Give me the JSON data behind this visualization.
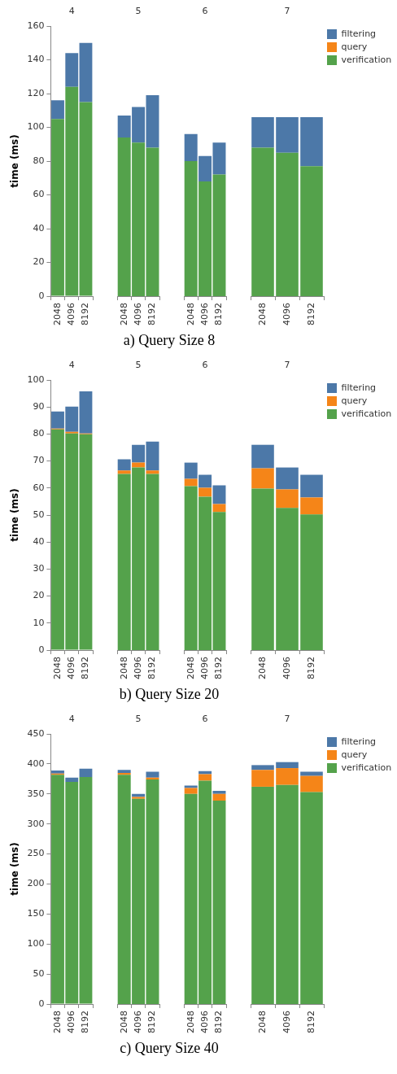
{
  "chart_data": [
    {
      "type": "bar",
      "title": "4",
      "ylabel": "time (ms)",
      "annotations": [
        "a) Query Size 8"
      ],
      "categories": [
        "2048",
        "4096",
        "8192"
      ],
      "stacked": true,
      "ylim": [
        0,
        160
      ],
      "yticks": [
        0,
        20,
        40,
        60,
        80,
        100,
        120,
        140,
        160
      ],
      "series": [
        {
          "color": "#54a24b",
          "values": [
            105,
            124,
            115
          ]
        },
        {
          "color": "#f58518",
          "values": [
            0,
            0,
            0
          ]
        },
        {
          "color": "#4c78a8",
          "values": [
            11,
            20,
            35
          ]
        }
      ]
    },
    {
      "type": "bar",
      "title": "5",
      "categories": [
        "2048",
        "4096",
        "8192"
      ],
      "stacked": true,
      "ylim": [
        0,
        160
      ],
      "tick_labels": "x",
      "series": [
        {
          "color": "#54a24b",
          "values": [
            94,
            91,
            88
          ]
        },
        {
          "color": "#f58518",
          "values": [
            0,
            0,
            0
          ]
        },
        {
          "color": "#4c78a8",
          "values": [
            13,
            21,
            31
          ]
        }
      ]
    },
    {
      "type": "bar",
      "title": "6",
      "categories": [
        "2048",
        "4096",
        "8192"
      ],
      "stacked": true,
      "ylim": [
        0,
        160
      ],
      "tick_labels": "x",
      "series": [
        {
          "color": "#54a24b",
          "values": [
            80,
            68,
            72
          ]
        },
        {
          "color": "#f58518",
          "values": [
            0,
            0,
            0
          ]
        },
        {
          "color": "#4c78a8",
          "values": [
            16,
            15,
            19
          ]
        }
      ]
    },
    {
      "type": "bar",
      "title": "7",
      "categories": [
        "2048",
        "4096",
        "8192"
      ],
      "stacked": true,
      "ylim": [
        0,
        160
      ],
      "tick_labels": "x",
      "legend": "top right",
      "series": [
        {
          "name": "verification",
          "color": "#54a24b",
          "values": [
            88,
            85,
            77
          ]
        },
        {
          "name": "query",
          "color": "#f58518",
          "values": [
            0,
            0,
            0
          ]
        },
        {
          "name": "filtering",
          "color": "#4c78a8",
          "values": [
            18,
            21,
            29
          ]
        }
      ]
    },
    {
      "type": "bar",
      "title": "4",
      "ylabel": "time (ms)",
      "annotations": [
        "b) Query Size 20"
      ],
      "categories": [
        "2048",
        "4096",
        "8192"
      ],
      "stacked": true,
      "ylim": [
        0,
        100
      ],
      "yticks": [
        0,
        10,
        20,
        30,
        40,
        50,
        60,
        70,
        80,
        90,
        100
      ],
      "series": [
        {
          "color": "#54a24b",
          "values": [
            81.7,
            80.2,
            79.9
          ]
        },
        {
          "color": "#f58518",
          "values": [
            0.3,
            0.6,
            0.3
          ]
        },
        {
          "color": "#4c78a8",
          "values": [
            6.3,
            9.3,
            15.6
          ]
        }
      ]
    },
    {
      "type": "bar",
      "title": "5",
      "categories": [
        "2048",
        "4096",
        "8192"
      ],
      "stacked": true,
      "ylim": [
        0,
        100
      ],
      "tick_labels": "x",
      "series": [
        {
          "color": "#54a24b",
          "values": [
            65.2,
            67.6,
            65.2
          ]
        },
        {
          "color": "#f58518",
          "values": [
            1.3,
            1.8,
            1.3
          ]
        },
        {
          "color": "#4c78a8",
          "values": [
            4.1,
            6.6,
            10.7
          ]
        }
      ]
    },
    {
      "type": "bar",
      "title": "6",
      "categories": [
        "2048",
        "4096",
        "8192"
      ],
      "stacked": true,
      "ylim": [
        0,
        100
      ],
      "tick_labels": "x",
      "series": [
        {
          "color": "#54a24b",
          "values": [
            60.7,
            56.8,
            51.1
          ]
        },
        {
          "color": "#f58518",
          "values": [
            2.7,
            3.3,
            3.0
          ]
        },
        {
          "color": "#4c78a8",
          "values": [
            6.0,
            4.8,
            6.9
          ]
        }
      ]
    },
    {
      "type": "bar",
      "title": "7",
      "categories": [
        "2048",
        "4096",
        "8192"
      ],
      "stacked": true,
      "ylim": [
        0,
        100
      ],
      "tick_labels": "x",
      "legend": "top right",
      "series": [
        {
          "name": "verification",
          "color": "#54a24b",
          "values": [
            59.8,
            52.6,
            50.2
          ]
        },
        {
          "name": "query",
          "color": "#f58518",
          "values": [
            7.5,
            6.9,
            6.3
          ]
        },
        {
          "name": "filtering",
          "color": "#4c78a8",
          "values": [
            8.7,
            8.1,
            8.4
          ]
        }
      ]
    },
    {
      "type": "bar",
      "title": "4",
      "ylabel": "time (ms)",
      "annotations": [
        "c) Query Size 40"
      ],
      "categories": [
        "2048",
        "4096",
        "8192"
      ],
      "stacked": true,
      "ylim": [
        0,
        450
      ],
      "yticks": [
        0,
        50,
        100,
        150,
        200,
        250,
        300,
        350,
        400,
        450
      ],
      "series": [
        {
          "color": "#54a24b",
          "values": [
            382,
            370,
            378
          ]
        },
        {
          "color": "#f58518",
          "values": [
            2,
            0,
            0
          ]
        },
        {
          "color": "#4c78a8",
          "values": [
            5,
            7,
            14
          ]
        }
      ]
    },
    {
      "type": "bar",
      "title": "5",
      "categories": [
        "2048",
        "4096",
        "8192"
      ],
      "stacked": true,
      "ylim": [
        0,
        450
      ],
      "tick_labels": "x",
      "series": [
        {
          "color": "#54a24b",
          "values": [
            382,
            342,
            374
          ]
        },
        {
          "color": "#f58518",
          "values": [
            3,
            3,
            3
          ]
        },
        {
          "color": "#4c78a8",
          "values": [
            5,
            5,
            10
          ]
        }
      ]
    },
    {
      "type": "bar",
      "title": "6",
      "categories": [
        "2048",
        "4096",
        "8192"
      ],
      "stacked": true,
      "ylim": [
        0,
        450
      ],
      "tick_labels": "x",
      "series": [
        {
          "color": "#54a24b",
          "values": [
            350,
            372,
            339
          ]
        },
        {
          "color": "#f58518",
          "values": [
            10,
            11,
            11
          ]
        },
        {
          "color": "#4c78a8",
          "values": [
            4,
            5,
            5
          ]
        }
      ]
    },
    {
      "type": "bar",
      "title": "7",
      "categories": [
        "2048",
        "4096",
        "8192"
      ],
      "stacked": true,
      "ylim": [
        0,
        450
      ],
      "tick_labels": "x",
      "legend": "top right",
      "series": [
        {
          "name": "verification",
          "color": "#54a24b",
          "values": [
            362,
            365,
            353
          ]
        },
        {
          "name": "query",
          "color": "#f58518",
          "values": [
            28,
            28,
            27
          ]
        },
        {
          "name": "filtering",
          "color": "#4c78a8",
          "values": [
            8,
            10,
            7
          ]
        }
      ]
    }
  ]
}
